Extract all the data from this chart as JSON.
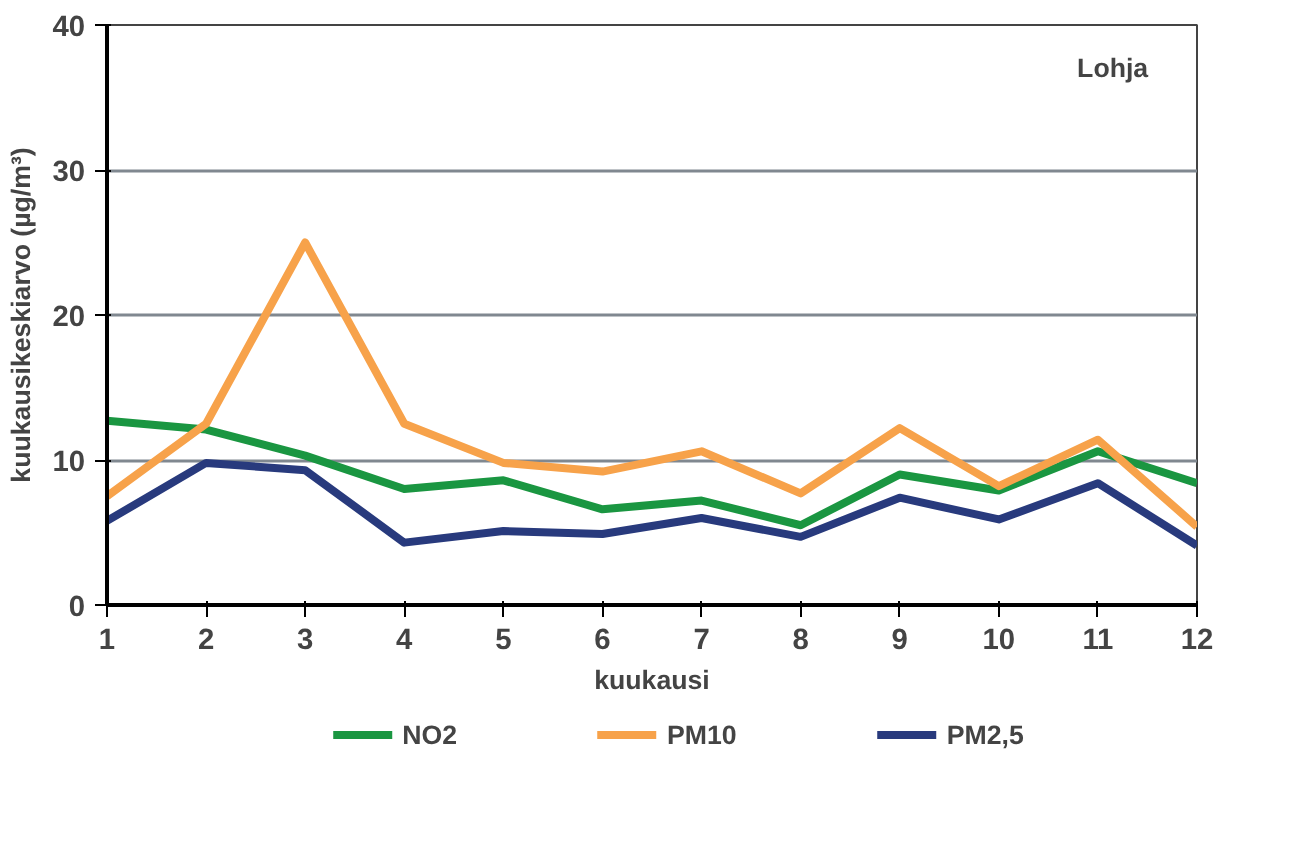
{
  "chart_data": {
    "type": "line",
    "xlabel": "kuukausi",
    "ylabel": "kuukausikeskiarvo (µg/m³)",
    "annotations": [
      "Lohja"
    ],
    "x": [
      1,
      2,
      3,
      4,
      5,
      6,
      7,
      8,
      9,
      10,
      11,
      12
    ],
    "series": [
      {
        "name": "NO2",
        "color": "#1a9641",
        "values": [
          12.7,
          12.1,
          10.3,
          8.0,
          8.6,
          6.6,
          7.2,
          5.5,
          9.0,
          7.9,
          10.6,
          8.4
        ]
      },
      {
        "name": "PM10",
        "color": "#f7a24a",
        "values": [
          7.5,
          12.5,
          25.0,
          12.5,
          9.8,
          9.2,
          10.6,
          7.7,
          12.2,
          8.2,
          11.4,
          5.4
        ]
      },
      {
        "name": "PM2,5",
        "color": "#283a7d",
        "values": [
          5.8,
          9.8,
          9.3,
          4.3,
          5.1,
          4.9,
          6.0,
          4.7,
          7.4,
          5.9,
          8.4,
          4.1
        ]
      }
    ],
    "xlim": [
      1,
      12
    ],
    "xticks": [
      1,
      2,
      3,
      4,
      5,
      6,
      7,
      8,
      9,
      10,
      11,
      12
    ],
    "ylim": [
      0,
      40
    ],
    "yticks": [
      0,
      10,
      20,
      30,
      40
    ],
    "grid": "y",
    "legend": "bottom",
    "marker": "none",
    "line_style": "solid"
  }
}
